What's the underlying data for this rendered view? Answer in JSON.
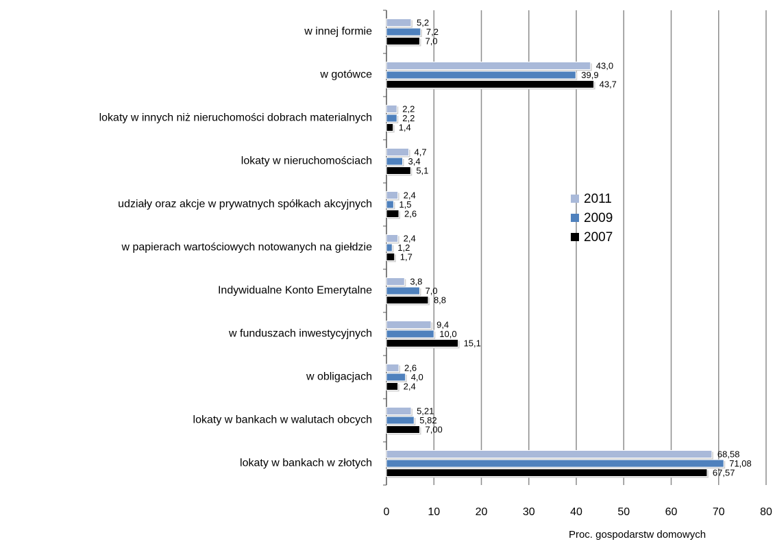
{
  "chart_data": {
    "type": "bar",
    "orientation": "horizontal",
    "categories": [
      "w innej formie",
      "w gotówce",
      "lokaty w innych niż nieruchomości dobrach materialnych",
      "lokaty w nieruchomościach",
      "udziały oraz akcje w prywatnych spółkach akcyjnych",
      "w papierach wartościowych notowanych na giełdzie",
      "Indywidualne Konto Emerytalne",
      "w funduszach inwestycyjnych",
      "w obligacjach",
      "lokaty w bankach w walutach obcych",
      "lokaty w bankach w złotych"
    ],
    "series": [
      {
        "name": "2011",
        "color": "#a9b9d9",
        "values": [
          5.2,
          43.0,
          2.2,
          4.7,
          2.4,
          2.4,
          3.8,
          9.4,
          2.6,
          5.21,
          68.58
        ],
        "value_labels": [
          "5,2",
          "43,0",
          "2,2",
          "4,7",
          "2,4",
          "2,4",
          "3,8",
          "9,4",
          "2,6",
          "5,21",
          "68,58"
        ]
      },
      {
        "name": "2009",
        "color": "#4f81bd",
        "values": [
          7.2,
          39.9,
          2.2,
          3.4,
          1.5,
          1.2,
          7.0,
          10.0,
          4.0,
          5.82,
          71.08
        ],
        "value_labels": [
          "7,2",
          "39,9",
          "2,2",
          "3,4",
          "1,5",
          "1,2",
          "7,0",
          "10,0",
          "4,0",
          "5,82",
          "71,08"
        ]
      },
      {
        "name": "2007",
        "color": "#000000",
        "values": [
          7.0,
          43.7,
          1.4,
          5.1,
          2.6,
          1.7,
          8.8,
          15.1,
          2.4,
          7.0,
          67.57
        ],
        "value_labels": [
          "7,0",
          "43,7",
          "1,4",
          "5,1",
          "2,6",
          "1,7",
          "8,8",
          "15,1",
          "2,4",
          "7,00",
          "67,57"
        ]
      }
    ],
    "x_label": "Proc. gospodarstw domowych",
    "xlim": [
      0,
      80
    ],
    "xticks": [
      0,
      10,
      20,
      30,
      40,
      50,
      60,
      70,
      80
    ],
    "grid": true,
    "legend": "right"
  }
}
